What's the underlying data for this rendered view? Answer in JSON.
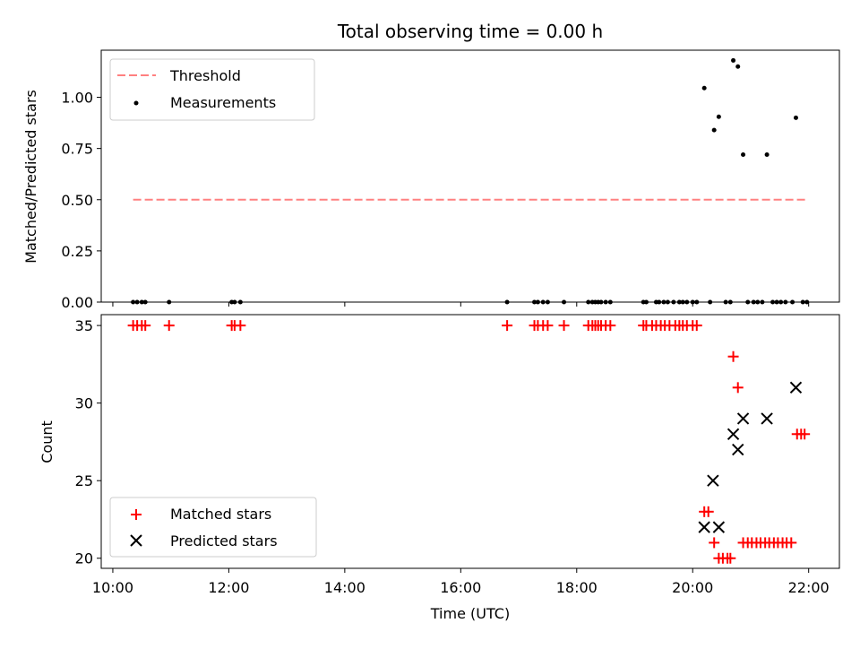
{
  "figure": {
    "title": "Total observing time = 0.00 h"
  },
  "chart_data": [
    {
      "type": "scatter",
      "title": "Total observing time = 0.00 h",
      "xlabel": "",
      "ylabel": "Matched/Predicted stars",
      "xlim": [
        9.8,
        22.53
      ],
      "ylim": [
        0.0,
        1.23
      ],
      "yticks": [
        "0.00",
        "0.25",
        "0.50",
        "0.75",
        "1.00"
      ],
      "legend_position": "top-left",
      "series": [
        {
          "name": "Threshold",
          "kind": "dashed-line",
          "color": "#ff8080",
          "x": [
            10.35,
            21.97
          ],
          "y": [
            0.5,
            0.5
          ]
        },
        {
          "name": "Measurements",
          "kind": "dots",
          "color": "#000000",
          "x": [
            10.35,
            10.42,
            10.5,
            10.56,
            10.97,
            12.05,
            12.1,
            12.2,
            16.8,
            17.27,
            17.33,
            17.42,
            17.5,
            17.78,
            18.2,
            18.27,
            18.32,
            18.37,
            18.42,
            18.5,
            18.58,
            19.15,
            19.2,
            19.37,
            19.42,
            19.5,
            19.57,
            19.67,
            19.77,
            19.83,
            19.9,
            20.0,
            20.07,
            20.3,
            20.57,
            20.65,
            20.95,
            21.05,
            21.12,
            21.2,
            21.38,
            21.45,
            21.52,
            21.6,
            21.72,
            21.9,
            21.97,
            20.2,
            20.37,
            20.45,
            20.7,
            20.78,
            20.87,
            21.28,
            21.78
          ],
          "y": [
            0,
            0,
            0,
            0,
            0,
            0,
            0,
            0,
            0,
            0,
            0,
            0,
            0,
            0,
            0,
            0,
            0,
            0,
            0,
            0,
            0,
            0,
            0,
            0,
            0,
            0,
            0,
            0,
            0,
            0,
            0,
            0,
            0,
            0,
            0,
            0,
            0,
            0,
            0,
            0,
            0,
            0,
            0,
            0,
            0,
            0,
            0,
            1.045,
            0.84,
            0.905,
            1.18,
            1.15,
            0.72,
            0.72,
            0.9
          ]
        }
      ]
    },
    {
      "type": "scatter",
      "title": "",
      "xlabel": "Time (UTC)",
      "ylabel": "Count",
      "xlim": [
        9.8,
        22.53
      ],
      "ylim": [
        19.35,
        35.7
      ],
      "yticks": [
        "20",
        "25",
        "30",
        "35"
      ],
      "xticks": [
        "10:00",
        "12:00",
        "14:00",
        "16:00",
        "18:00",
        "20:00",
        "22:00"
      ],
      "legend_position": "bottom-left",
      "series": [
        {
          "name": "Matched stars",
          "marker": "plus",
          "color": "#ff0000",
          "x": [
            10.35,
            10.42,
            10.5,
            10.56,
            10.97,
            12.05,
            12.1,
            12.2,
            16.8,
            17.27,
            17.33,
            17.42,
            17.5,
            17.78,
            18.2,
            18.27,
            18.32,
            18.37,
            18.42,
            18.5,
            18.58,
            19.15,
            19.2,
            19.3,
            19.37,
            19.45,
            19.52,
            19.6,
            19.7,
            19.77,
            19.83,
            19.9,
            20.0,
            20.07,
            20.2,
            20.27,
            20.37,
            20.45,
            20.52,
            20.6,
            20.65,
            20.7,
            20.78,
            20.87,
            20.95,
            21.02,
            21.1,
            21.17,
            21.25,
            21.32,
            21.4,
            21.47,
            21.55,
            21.62,
            21.7,
            21.8,
            21.87,
            21.93
          ],
          "y": [
            35,
            35,
            35,
            35,
            35,
            35,
            35,
            35,
            35,
            35,
            35,
            35,
            35,
            35,
            35,
            35,
            35,
            35,
            35,
            35,
            35,
            35,
            35,
            35,
            35,
            35,
            35,
            35,
            35,
            35,
            35,
            35,
            35,
            35,
            23,
            23,
            21,
            20,
            20,
            20,
            20,
            33,
            31,
            21,
            21,
            21,
            21,
            21,
            21,
            21,
            21,
            21,
            21,
            21,
            21,
            28,
            28,
            28
          ]
        },
        {
          "name": "Predicted stars",
          "marker": "x",
          "color": "#000000",
          "x": [
            20.2,
            20.35,
            20.45,
            20.7,
            20.78,
            20.87,
            21.28,
            21.78
          ],
          "y": [
            22,
            25,
            22,
            28,
            27,
            29,
            29,
            31
          ]
        }
      ]
    }
  ]
}
